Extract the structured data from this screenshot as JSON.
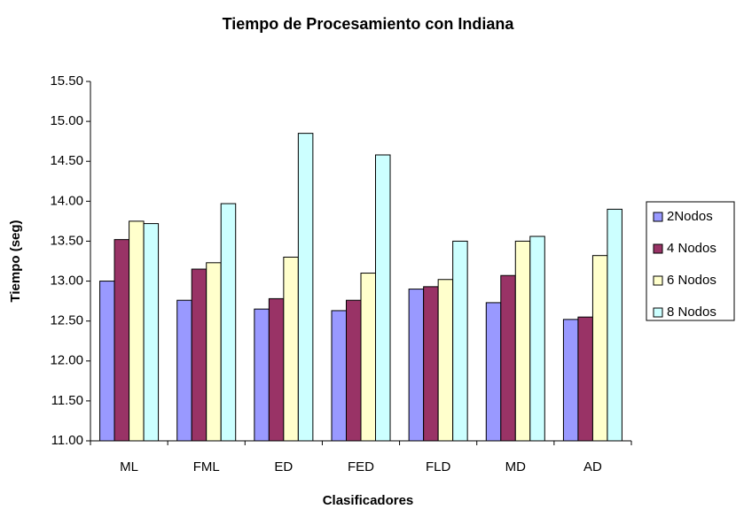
{
  "chart_data": {
    "type": "bar",
    "title": "Tiempo de Procesamiento con Indiana",
    "x_label": "Clasificadores",
    "y_label": "Tiempo (seg)",
    "categories": [
      "ML",
      "FML",
      "ED",
      "FED",
      "FLD",
      "MD",
      "AD"
    ],
    "series": [
      {
        "name": "2Nodos",
        "color": "#9999ff",
        "values": [
          13.0,
          12.76,
          12.65,
          12.63,
          12.9,
          12.73,
          12.52
        ]
      },
      {
        "name": "4 Nodos",
        "color": "#993366",
        "values": [
          13.52,
          13.15,
          12.78,
          12.76,
          12.93,
          13.07,
          12.55
        ]
      },
      {
        "name": "6 Nodos",
        "color": "#ffffcc",
        "values": [
          13.75,
          13.23,
          13.3,
          13.1,
          13.02,
          13.5,
          13.32
        ]
      },
      {
        "name": "8 Nodos",
        "color": "#ccffff",
        "values": [
          13.72,
          13.97,
          14.85,
          14.58,
          13.5,
          13.56,
          13.9
        ]
      }
    ],
    "ylim": [
      11,
      15.5
    ],
    "yticks": [
      {
        "value": 11,
        "label": "11.00"
      },
      {
        "value": 11.5,
        "label": "11.50"
      },
      {
        "value": 12,
        "label": "12.00"
      },
      {
        "value": 12.5,
        "label": "12.50"
      },
      {
        "value": 13,
        "label": "13.00"
      },
      {
        "value": 13.5,
        "label": "13.50"
      },
      {
        "value": 14,
        "label": "14.00"
      },
      {
        "value": 14.5,
        "label": "14.50"
      },
      {
        "value": 15,
        "label": "15.00"
      },
      {
        "value": 15.5,
        "label": "15.50"
      }
    ],
    "grid": false,
    "legend": "right"
  }
}
